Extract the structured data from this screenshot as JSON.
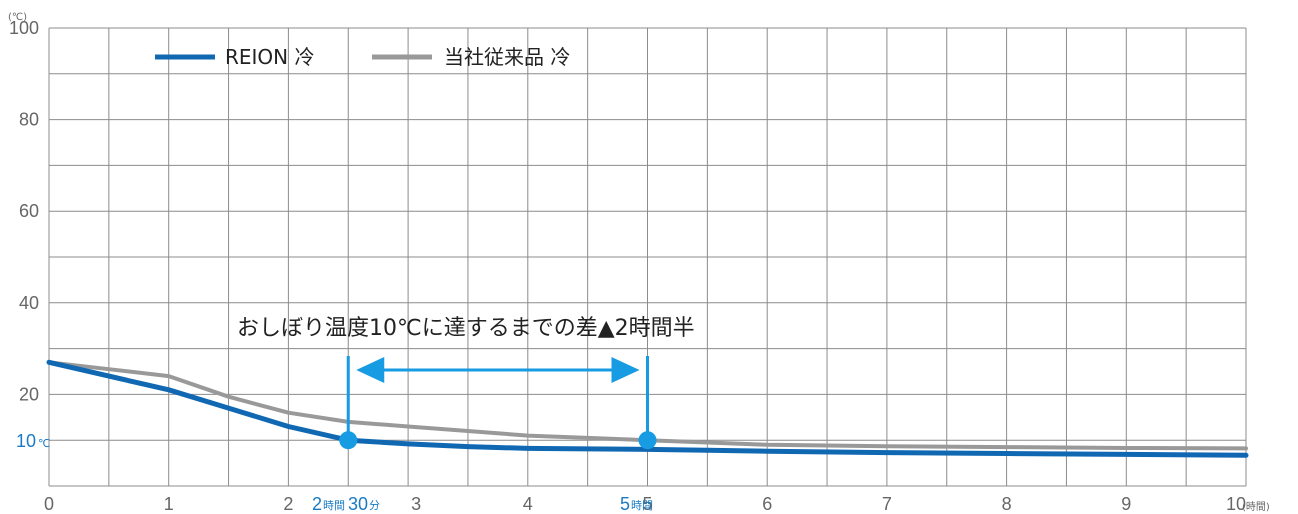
{
  "chart_data": {
    "type": "line",
    "y_unit": "(℃)",
    "x_unit": "(時間)",
    "xlim": [
      0,
      10
    ],
    "ylim": [
      0,
      100
    ],
    "grid": true,
    "legend_position": "top-left",
    "x_ticks": [
      "0",
      "1",
      "2",
      "3",
      "4",
      "5",
      "6",
      "7",
      "8",
      "9",
      "10"
    ],
    "y_ticks": [
      "100",
      "80",
      "60",
      "40",
      "20"
    ],
    "highlight_y": {
      "value": 10,
      "label": "10",
      "unit": "℃"
    },
    "series": [
      {
        "name": "当社従来品 冷",
        "color": "#999999",
        "x": [
          0,
          0.5,
          1,
          1.5,
          2,
          2.5,
          3,
          3.5,
          4,
          4.5,
          5,
          5.5,
          6,
          7,
          8,
          9,
          10
        ],
        "y": [
          27,
          25.5,
          24,
          19.5,
          16,
          14,
          13,
          12,
          11,
          10.5,
          10,
          9.5,
          9,
          8.7,
          8.5,
          8.3,
          8.2
        ]
      },
      {
        "name": "REION 冷",
        "color": "#1068b3",
        "x": [
          0,
          0.5,
          1,
          1.5,
          2,
          2.5,
          3,
          3.5,
          4,
          4.5,
          5,
          5.5,
          6,
          7,
          8,
          9,
          10
        ],
        "y": [
          27,
          24,
          21,
          17,
          13,
          10,
          9.2,
          8.6,
          8.2,
          8.1,
          8,
          7.8,
          7.6,
          7.3,
          7.1,
          6.9,
          6.7
        ]
      }
    ],
    "markers": [
      {
        "x": 2.5,
        "y": 10,
        "label_num1": "2",
        "label_unit1": "時間",
        "label_num2": "30",
        "label_unit2": "分"
      },
      {
        "x": 5,
        "y": 10,
        "label_num1": "5",
        "label_unit1": "時間"
      }
    ],
    "annotation": {
      "text": "おしぼり温度10℃に達するまでの差▲2時間半",
      "x_from": 2.5,
      "x_to": 5
    },
    "colors": {
      "accent": "#179be3",
      "grid": "#8c8c8c",
      "label_blue": "#1a7bc4"
    }
  }
}
